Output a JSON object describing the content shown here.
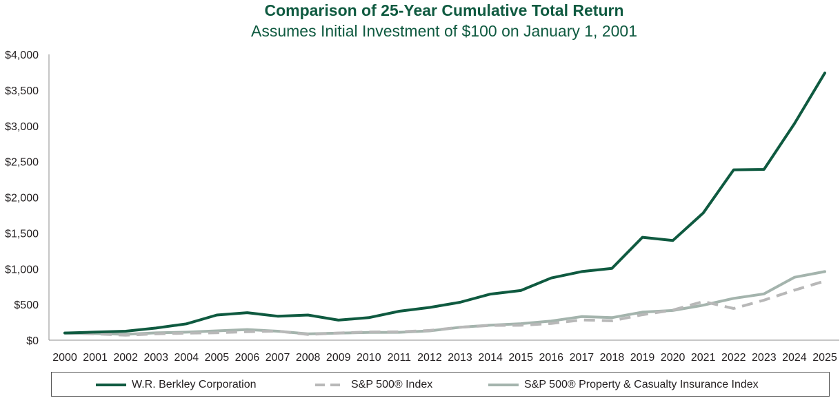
{
  "chart_data": {
    "type": "line",
    "title": "Comparison of 25-Year Cumulative Total Return",
    "subtitle": "Assumes Initial Investment of $100 on January 1, 2001",
    "x": [
      "2000",
      "2001",
      "2002",
      "2003",
      "2004",
      "2005",
      "2006",
      "2007",
      "2008",
      "2009",
      "2010",
      "2011",
      "2012",
      "2013",
      "2014",
      "2015",
      "2016",
      "2017",
      "2018",
      "2019",
      "2020",
      "2021",
      "2022",
      "2023",
      "2024",
      "2025"
    ],
    "ylim": [
      0,
      4000
    ],
    "y_ticks": [
      0,
      500,
      1000,
      1500,
      2000,
      2500,
      3000,
      3500,
      4000
    ],
    "y_tick_labels": [
      "$0",
      "$500",
      "$1,000",
      "$1,500",
      "$2,000",
      "$2,500",
      "$3,000",
      "$3,500",
      "$4,000"
    ],
    "grid": false,
    "legend_position": "bottom",
    "series": [
      {
        "name": "W.R. Berkley Corporation",
        "color": "#0f5a40",
        "style": "solid",
        "values": [
          100,
          113,
          125,
          170,
          228,
          352,
          385,
          335,
          352,
          280,
          315,
          405,
          458,
          530,
          645,
          695,
          870,
          960,
          1005,
          1440,
          1395,
          1780,
          2385,
          2390,
          3030,
          3740
        ]
      },
      {
        "name": "S&P 500® Index",
        "color": "#b8b8b8",
        "style": "dashed",
        "values": [
          100,
          88,
          69,
          88,
          98,
          103,
          119,
          126,
          79,
          100,
          115,
          117,
          136,
          180,
          205,
          208,
          233,
          283,
          271,
          356,
          421,
          541,
          443,
          560,
          700,
          828
        ]
      },
      {
        "name": "S&P 500® Property & Casualty Insurance Index",
        "color": "#a4b4ad",
        "style": "solid",
        "values": [
          100,
          93,
          82,
          102,
          112,
          130,
          148,
          125,
          88,
          98,
          108,
          110,
          130,
          180,
          210,
          230,
          268,
          330,
          315,
          392,
          415,
          490,
          585,
          648,
          880,
          960
        ]
      }
    ]
  }
}
